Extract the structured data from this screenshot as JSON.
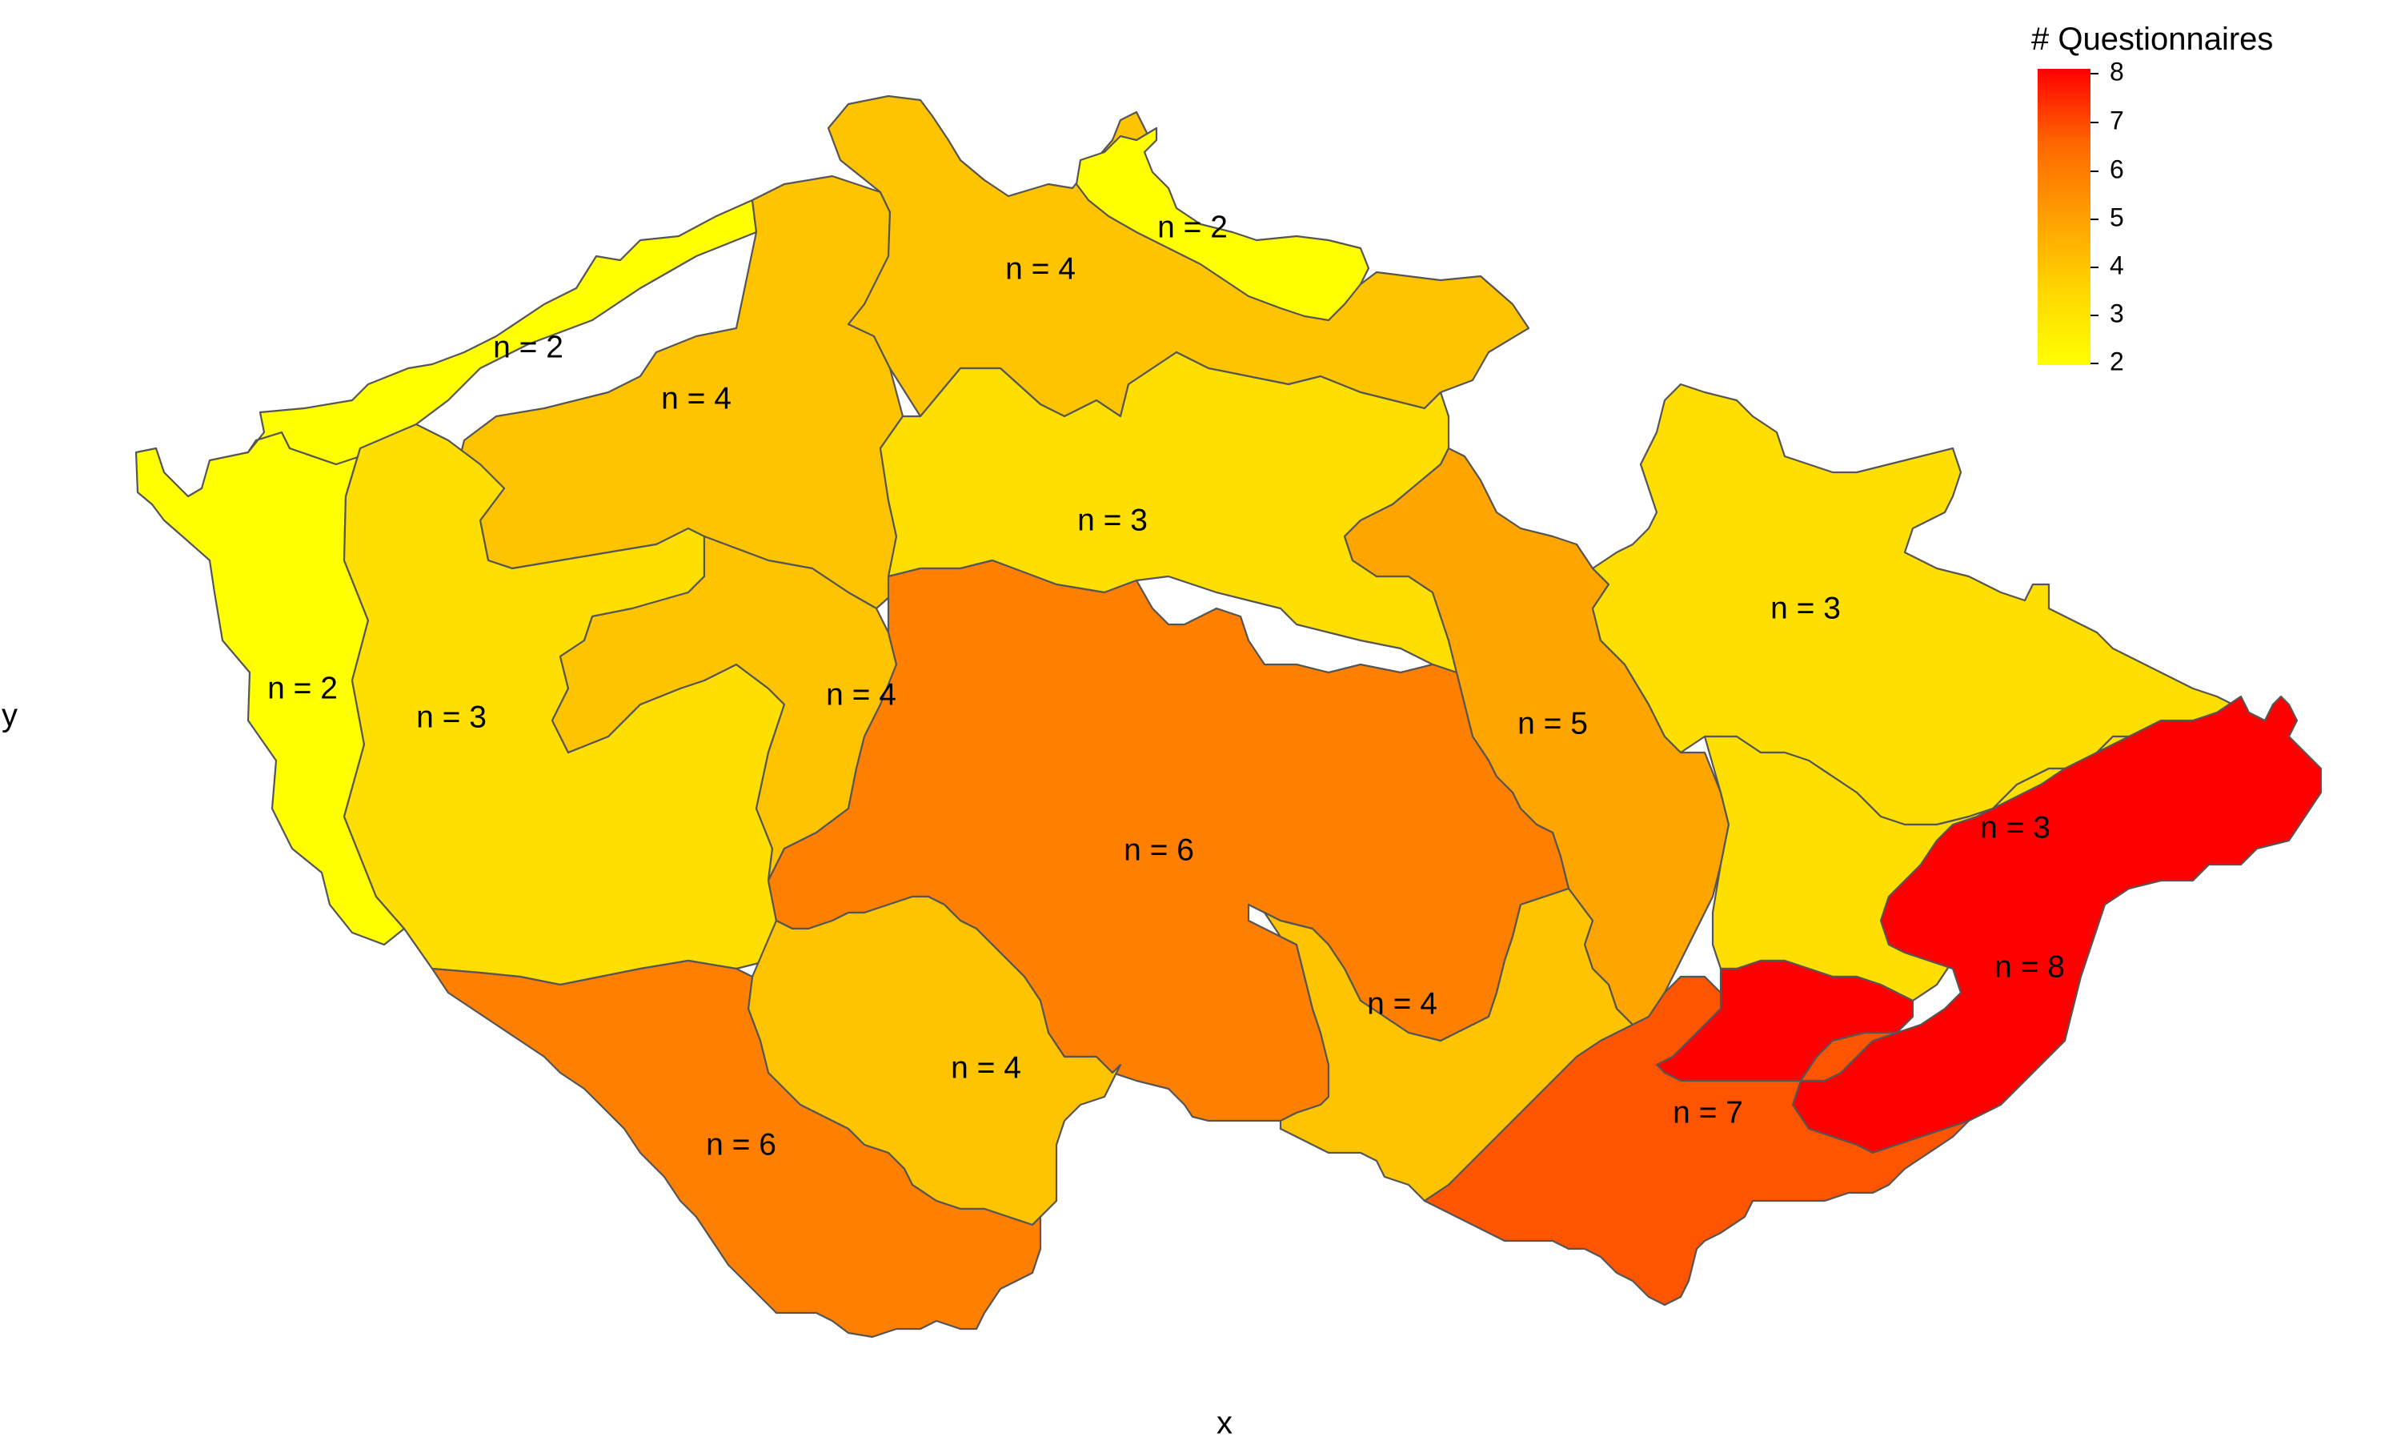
{
  "map": {
    "x_axis_title": "x",
    "y_axis_title": "y",
    "legend": {
      "title": "# Questionnaires",
      "ticks": [
        "8",
        "7",
        "6",
        "5",
        "4",
        "3",
        "2"
      ],
      "min": 2,
      "max": 8,
      "colors": {
        "low": "#ffff00",
        "mid_low": "#ffd700",
        "mid": "#ff9f00",
        "mid_high": "#ff6600",
        "high": "#ff0000"
      }
    },
    "regions": [
      {
        "id": "karlovarsky",
        "count": 2,
        "label": "n = 2",
        "color": "#ffff00"
      },
      {
        "id": "ustecky",
        "count": 2,
        "label": "n = 2",
        "color": "#ffff00"
      },
      {
        "id": "liberecky",
        "count": 2,
        "label": "n = 2",
        "color": "#ffff00"
      },
      {
        "id": "ustecky-main",
        "count": 4,
        "label": "n = 4",
        "color": "#ffc400"
      },
      {
        "id": "liberecky-main",
        "count": 4,
        "label": "n = 4",
        "color": "#ffc400"
      },
      {
        "id": "plzensky",
        "count": 3,
        "label": "n = 3",
        "color": "#ffdf00"
      },
      {
        "id": "stredocesky-sw",
        "count": 4,
        "label": "n = 4",
        "color": "#ffc400"
      },
      {
        "id": "kralovehradecky",
        "count": 3,
        "label": "n = 3",
        "color": "#ffdf00"
      },
      {
        "id": "pardubicky",
        "count": 5,
        "label": "n = 5",
        "color": "#ffa500"
      },
      {
        "id": "olomoucky",
        "count": 3,
        "label": "n = 3",
        "color": "#ffdf00"
      },
      {
        "id": "moravskoslezsky",
        "count": 3,
        "label": "n = 3",
        "color": "#ffdf00"
      },
      {
        "id": "stredocesky",
        "count": 6,
        "label": "n = 6",
        "color": "#ff7f00"
      },
      {
        "id": "vysocina",
        "count": 4,
        "label": "n = 4",
        "color": "#ffc400"
      },
      {
        "id": "jihocesky-ne",
        "count": 4,
        "label": "n = 4",
        "color": "#ffc400"
      },
      {
        "id": "jihocesky",
        "count": 6,
        "label": "n = 6",
        "color": "#ff7f00"
      },
      {
        "id": "jihomoravsky",
        "count": 7,
        "label": "n = 7",
        "color": "#ff5500"
      },
      {
        "id": "zlinsky",
        "count": 8,
        "label": "n = 8",
        "color": "#ff0000"
      }
    ]
  }
}
